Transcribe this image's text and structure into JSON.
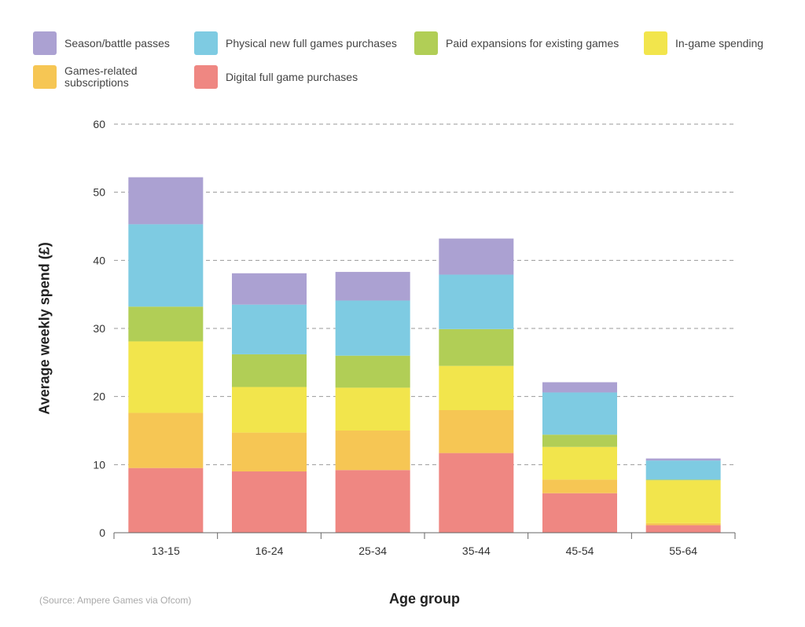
{
  "chart_data": {
    "type": "bar",
    "stacked": true,
    "categories": [
      "13-15",
      "16-24",
      "25-34",
      "35-44",
      "45-54",
      "55-64"
    ],
    "series": [
      {
        "name": "Digital full game purchases",
        "color": "#ef8782",
        "values": [
          9.5,
          9.0,
          9.2,
          11.7,
          5.8,
          1.1
        ]
      },
      {
        "name": "Games-related subscriptions",
        "color": "#f6c654",
        "values": [
          8.1,
          5.7,
          5.8,
          6.3,
          2.0,
          0.3
        ]
      },
      {
        "name": "In-game spending",
        "color": "#f2e54c",
        "values": [
          10.5,
          6.7,
          6.3,
          6.5,
          4.8,
          6.3
        ]
      },
      {
        "name": "Paid expansions for existing games",
        "color": "#b1ce56",
        "values": [
          5.1,
          4.8,
          4.7,
          5.4,
          1.8,
          0.1
        ]
      },
      {
        "name": "Physical new full games purchases",
        "color": "#7ecbe2",
        "values": [
          12.1,
          7.3,
          8.1,
          8.0,
          6.2,
          2.8
        ]
      },
      {
        "name": "Season/battle passes",
        "color": "#aba1d2",
        "values": [
          6.9,
          4.6,
          4.2,
          5.3,
          1.5,
          0.3
        ]
      }
    ],
    "legend_order": [
      5,
      4,
      3,
      2,
      1,
      0
    ],
    "ylabel": "Average weekly spend (£)",
    "xlabel": "Age group",
    "ylim": [
      0,
      60
    ],
    "yticks": [
      0,
      10,
      20,
      30,
      40,
      50,
      60
    ],
    "grid": "horizontal dashed",
    "legend_position": "top",
    "source": "(Source: Ampere Games via Ofcom)"
  }
}
